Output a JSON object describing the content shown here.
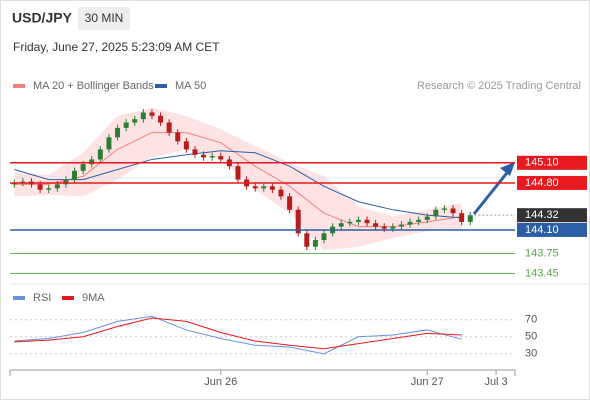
{
  "chart_data": [
    {
      "type": "candlestick",
      "title": "USD/JPY",
      "interval": "30 MIN",
      "subtitle": "Friday, June 27, 2025 5:23:09 AM CET",
      "credit": "Research © 2025 Trading Central",
      "xlim": [
        -0.5,
        58.2
      ],
      "ylim": [
        143.28,
        146.11
      ],
      "open": [
        144.78,
        144.8,
        144.82,
        144.78,
        144.7,
        144.72,
        144.78,
        144.85,
        144.98,
        145.08,
        145.15,
        145.3,
        145.48,
        145.62,
        145.7,
        145.75,
        145.85,
        145.8,
        145.7,
        145.55,
        145.42,
        145.3,
        145.22,
        145.18,
        145.2,
        145.15,
        145.05,
        144.85,
        144.75,
        144.72,
        144.75,
        144.7,
        144.6,
        144.4,
        144.05,
        143.85,
        143.95,
        144.05,
        144.15,
        144.2,
        144.22,
        144.25,
        144.2,
        144.15,
        144.12,
        144.15,
        144.18,
        144.22,
        144.25,
        144.3,
        144.4,
        144.42,
        144.35,
        144.22
      ],
      "high": [
        144.85,
        144.87,
        144.87,
        144.83,
        144.77,
        144.83,
        144.9,
        145.03,
        145.13,
        145.2,
        145.35,
        145.53,
        145.67,
        145.75,
        145.8,
        145.9,
        145.9,
        145.85,
        145.75,
        145.6,
        145.47,
        145.35,
        145.27,
        145.25,
        145.25,
        145.2,
        145.1,
        144.9,
        144.8,
        144.8,
        144.8,
        144.75,
        144.65,
        144.45,
        144.1,
        144.0,
        144.1,
        144.2,
        144.25,
        144.27,
        144.3,
        144.3,
        144.25,
        144.2,
        144.2,
        144.23,
        144.27,
        144.3,
        144.35,
        144.45,
        144.47,
        144.47,
        144.4,
        144.37
      ],
      "low": [
        144.73,
        144.75,
        144.73,
        144.65,
        144.65,
        144.67,
        144.73,
        144.8,
        144.93,
        145.03,
        145.1,
        145.25,
        145.43,
        145.57,
        145.65,
        145.7,
        145.75,
        145.65,
        145.5,
        145.37,
        145.25,
        145.17,
        145.13,
        145.13,
        145.1,
        145.0,
        144.8,
        144.7,
        144.67,
        144.67,
        144.65,
        144.55,
        144.35,
        144.0,
        143.8,
        143.8,
        143.9,
        144.0,
        144.1,
        144.15,
        144.17,
        144.15,
        144.1,
        144.07,
        144.07,
        144.1,
        144.13,
        144.17,
        144.2,
        144.25,
        144.35,
        144.3,
        144.17,
        144.17
      ],
      "close": [
        144.8,
        144.82,
        144.78,
        144.7,
        144.72,
        144.78,
        144.85,
        144.98,
        145.08,
        145.15,
        145.3,
        145.48,
        145.62,
        145.7,
        145.75,
        145.85,
        145.8,
        145.7,
        145.55,
        145.42,
        145.3,
        145.22,
        145.18,
        145.2,
        145.15,
        145.05,
        144.85,
        144.75,
        144.72,
        144.75,
        144.7,
        144.6,
        144.4,
        144.05,
        143.85,
        143.95,
        144.05,
        144.15,
        144.2,
        144.22,
        144.25,
        144.2,
        144.15,
        144.12,
        144.15,
        144.18,
        144.22,
        144.25,
        144.3,
        144.4,
        144.42,
        144.35,
        144.22,
        144.32
      ],
      "up_color": "#2e7d32",
      "down_color": "#b71c1c",
      "bands": {
        "x": [
          0,
          4,
          8,
          12,
          16,
          20,
          24,
          28,
          32,
          36,
          40,
          44,
          48,
          52
        ],
        "upper": [
          144.95,
          144.92,
          145.25,
          145.8,
          145.92,
          145.8,
          145.6,
          145.35,
          145.1,
          144.9,
          144.45,
          144.3,
          144.4,
          144.5
        ],
        "lower": [
          144.6,
          144.62,
          144.6,
          144.85,
          145.18,
          145.3,
          145.15,
          144.7,
          144.35,
          143.8,
          143.85,
          143.98,
          144.08,
          144.12
        ],
        "color": "#fcdcdc"
      },
      "series": [
        {
          "name": "MA 20 + Bollinger Bands",
          "color": "#f08080",
          "x": [
            0,
            4,
            8,
            12,
            16,
            20,
            24,
            28,
            32,
            36,
            40,
            44,
            48,
            52
          ],
          "values": [
            144.78,
            144.78,
            144.9,
            145.3,
            145.55,
            145.55,
            145.4,
            145.05,
            144.75,
            144.35,
            144.15,
            144.15,
            144.22,
            144.3
          ]
        },
        {
          "name": "MA 50",
          "color": "#2b5ea7",
          "x": [
            0,
            4,
            8,
            12,
            16,
            20,
            24,
            28,
            32,
            36,
            40,
            44,
            48,
            52
          ],
          "values": [
            145.0,
            144.85,
            144.85,
            145.0,
            145.15,
            145.22,
            145.28,
            145.25,
            145.05,
            144.75,
            144.52,
            144.4,
            144.32,
            144.28
          ]
        }
      ],
      "last": 144.32,
      "levels": {
        "values": [
          145.1,
          144.8,
          144.1,
          143.75,
          143.45
        ],
        "value_labels": [
          "145.10",
          "144.80",
          "144.10",
          "143.75",
          "143.45"
        ],
        "colors": [
          "#e8191e",
          "#e8191e",
          "#2b5ea7",
          "#5aa64a",
          "#5aa64a"
        ],
        "label_boxed": [
          true,
          true,
          true,
          false,
          false
        ]
      }
    },
    {
      "type": "line",
      "xlim": [
        -0.5,
        58.2
      ],
      "ylim": [
        11,
        99
      ],
      "yticks": [
        70,
        50,
        30
      ],
      "xticks": [
        {
          "value": 24,
          "label": "Jun 26"
        },
        {
          "value": 48,
          "label": "Jun 27"
        },
        {
          "value": 56,
          "label": "Jul 3"
        }
      ],
      "series": [
        {
          "name": "RSI",
          "color": "#6d8fe0",
          "x": [
            0,
            4,
            8,
            12,
            16,
            20,
            24,
            28,
            32,
            36,
            40,
            44,
            48,
            52
          ],
          "values": [
            45,
            48,
            55,
            68,
            74,
            58,
            48,
            40,
            38,
            30,
            50,
            52,
            58,
            47
          ]
        },
        {
          "name": "9MA",
          "color": "#e8191e",
          "x": [
            0,
            4,
            8,
            12,
            16,
            20,
            24,
            28,
            32,
            36,
            40,
            44,
            48,
            52
          ],
          "values": [
            44,
            46,
            50,
            62,
            72,
            68,
            55,
            45,
            40,
            36,
            42,
            48,
            54,
            52
          ]
        }
      ]
    }
  ]
}
